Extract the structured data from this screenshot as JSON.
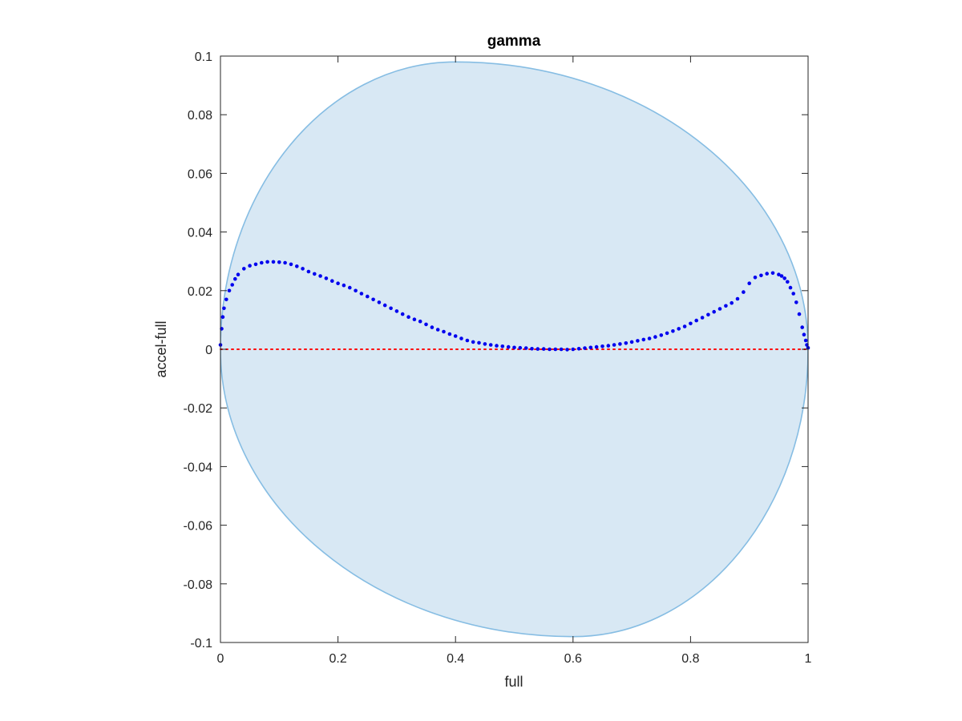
{
  "chart_data": {
    "type": "scatter",
    "title": "gamma",
    "xlabel": "full",
    "ylabel": "accel-full",
    "xlim": [
      0,
      1
    ],
    "ylim": [
      -0.1,
      0.1
    ],
    "x_ticks": [
      0,
      0.2,
      0.4,
      0.6,
      0.8,
      1
    ],
    "x_tick_labels": [
      "0",
      "0.2",
      "0.4",
      "0.6",
      "0.8",
      "1"
    ],
    "y_ticks": [
      -0.1,
      -0.08,
      -0.06,
      -0.04,
      -0.02,
      0,
      0.02,
      0.04,
      0.06,
      0.08,
      0.1
    ],
    "y_tick_labels": [
      "-0.1",
      "-0.08",
      "-0.06",
      "-0.04",
      "-0.02",
      "0",
      "0.02",
      "0.04",
      "0.06",
      "0.08",
      "0.1"
    ],
    "grid": false,
    "region": {
      "kind": "filled-ellipse",
      "fill": "#d8e8f4",
      "edge": "#86bde3",
      "x_range": [
        0,
        1
      ],
      "y_range": [
        -0.098,
        0.098
      ],
      "x_at_top": 0.4,
      "x_at_bottom": 0.6
    },
    "reference_line": {
      "y": 0,
      "style": "dotted",
      "color": "#ff0000"
    },
    "series": [
      {
        "marker_color": "#0000ee",
        "x": [
          0.0,
          0.002,
          0.004,
          0.006,
          0.01,
          0.015,
          0.02,
          0.025,
          0.03,
          0.04,
          0.05,
          0.06,
          0.07,
          0.08,
          0.09,
          0.1,
          0.11,
          0.12,
          0.13,
          0.14,
          0.15,
          0.16,
          0.17,
          0.18,
          0.19,
          0.2,
          0.21,
          0.22,
          0.23,
          0.24,
          0.25,
          0.26,
          0.27,
          0.28,
          0.29,
          0.3,
          0.31,
          0.32,
          0.33,
          0.34,
          0.35,
          0.36,
          0.37,
          0.38,
          0.39,
          0.4,
          0.41,
          0.42,
          0.43,
          0.44,
          0.45,
          0.46,
          0.47,
          0.48,
          0.49,
          0.5,
          0.51,
          0.52,
          0.53,
          0.54,
          0.55,
          0.56,
          0.57,
          0.58,
          0.59,
          0.6,
          0.61,
          0.62,
          0.63,
          0.64,
          0.65,
          0.66,
          0.67,
          0.68,
          0.69,
          0.7,
          0.71,
          0.72,
          0.73,
          0.74,
          0.75,
          0.76,
          0.77,
          0.78,
          0.79,
          0.8,
          0.81,
          0.82,
          0.83,
          0.84,
          0.85,
          0.86,
          0.87,
          0.88,
          0.89,
          0.9,
          0.91,
          0.92,
          0.93,
          0.94,
          0.95,
          0.955,
          0.96,
          0.965,
          0.97,
          0.975,
          0.98,
          0.985,
          0.99,
          0.993,
          0.996,
          0.998,
          1.0
        ],
        "y": [
          0.0015,
          0.007,
          0.011,
          0.014,
          0.017,
          0.02,
          0.022,
          0.024,
          0.0255,
          0.0275,
          0.0285,
          0.029,
          0.0295,
          0.0298,
          0.0298,
          0.0297,
          0.0295,
          0.029,
          0.0283,
          0.0275,
          0.0265,
          0.0257,
          0.025,
          0.0242,
          0.0233,
          0.0225,
          0.0218,
          0.021,
          0.02,
          0.019,
          0.018,
          0.017,
          0.016,
          0.015,
          0.014,
          0.013,
          0.012,
          0.011,
          0.0102,
          0.0095,
          0.0085,
          0.0075,
          0.0067,
          0.006,
          0.0052,
          0.0045,
          0.0037,
          0.003,
          0.0025,
          0.0022,
          0.0018,
          0.0015,
          0.0012,
          0.001,
          0.0008,
          0.0006,
          0.0005,
          0.0004,
          0.0002,
          0.0001,
          0.0001,
          0.0,
          0.0,
          0.0,
          -0.0001,
          0.0,
          0.0002,
          0.0004,
          0.0006,
          0.0008,
          0.001,
          0.0012,
          0.0015,
          0.0018,
          0.0021,
          0.0025,
          0.0029,
          0.0033,
          0.0037,
          0.0042,
          0.0048,
          0.0055,
          0.0062,
          0.007,
          0.0078,
          0.0088,
          0.0098,
          0.0108,
          0.0118,
          0.0128,
          0.0138,
          0.0148,
          0.0158,
          0.0172,
          0.0195,
          0.0225,
          0.0245,
          0.0252,
          0.0258,
          0.026,
          0.0255,
          0.025,
          0.0242,
          0.023,
          0.021,
          0.019,
          0.016,
          0.012,
          0.0075,
          0.005,
          0.003,
          0.0015,
          0.0005
        ]
      }
    ]
  }
}
